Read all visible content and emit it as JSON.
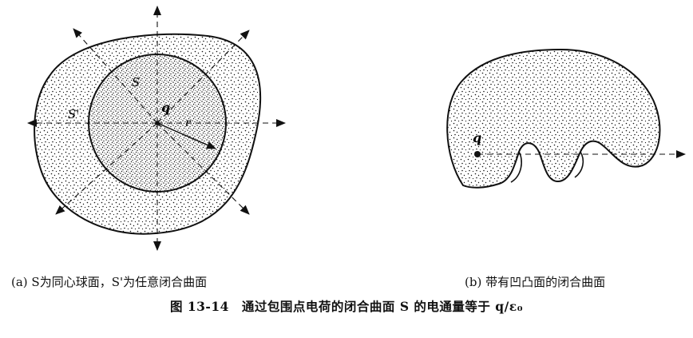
{
  "figure_a": {
    "labels": {
      "inner_surface": "S",
      "outer_surface": "S'",
      "charge": "q",
      "radius": "r"
    },
    "caption": "(a) S为同心球面，S'为任意闭合曲面"
  },
  "figure_b": {
    "labels": {
      "charge": "q"
    },
    "caption": "(b) 带有凹凸面的闭合曲面"
  },
  "main_caption": "图 13-14　通过包围点电荷的闭合曲面 S 的电通量等于 q/ε₀",
  "colors": {
    "ink": "#111111",
    "background": "#ffffff"
  }
}
